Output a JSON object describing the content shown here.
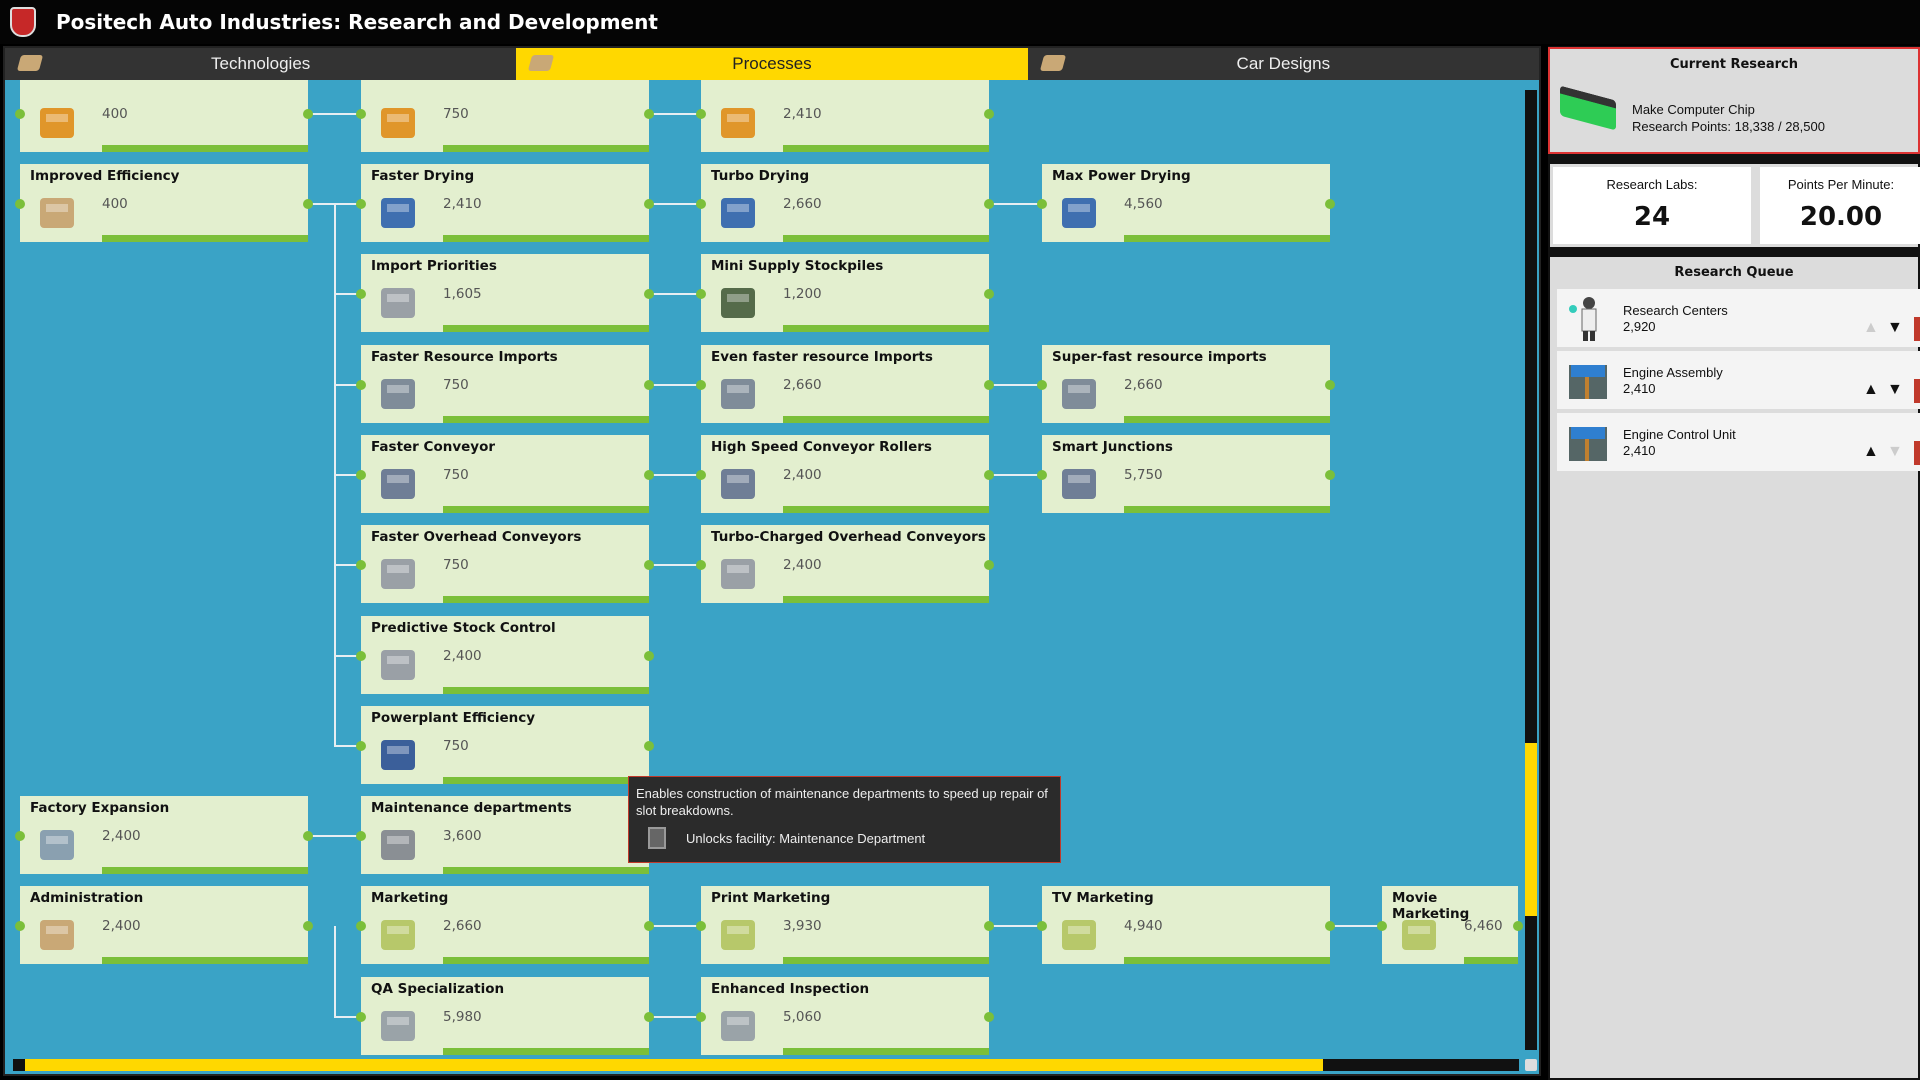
{
  "app_title": "Positech Auto Industries: Research and Development",
  "tabs": [
    {
      "label": "Technologies",
      "active": false
    },
    {
      "label": "Processes",
      "active": true
    },
    {
      "label": "Car Designs",
      "active": false
    }
  ],
  "cards": [
    {
      "name": "",
      "points": "400",
      "icon": "robot-arm"
    },
    {
      "name": "",
      "points": "750",
      "icon": "robot-arm"
    },
    {
      "name": "",
      "points": "2,410",
      "icon": "robot-arm"
    },
    {
      "name": "Improved Efficiency",
      "points": "400",
      "icon": "desk"
    },
    {
      "name": "Faster Drying",
      "points": "2,410",
      "icon": "dryer-fan"
    },
    {
      "name": "Turbo Drying",
      "points": "2,660",
      "icon": "dryer-fan"
    },
    {
      "name": "Max Power Drying",
      "points": "4,560",
      "icon": "dryer-fan"
    },
    {
      "name": "Import Priorities",
      "points": "1,605",
      "icon": "crane"
    },
    {
      "name": "Mini Supply Stockpiles",
      "points": "1,200",
      "icon": "pallet"
    },
    {
      "name": "Faster Resource Imports",
      "points": "750",
      "icon": "import-bay"
    },
    {
      "name": "Even faster resource Imports",
      "points": "2,660",
      "icon": "import-bay"
    },
    {
      "name": "Super-fast resource imports",
      "points": "2,660",
      "icon": "import-bay"
    },
    {
      "name": "Faster Conveyor",
      "points": "750",
      "icon": "conveyor"
    },
    {
      "name": "High Speed Conveyor Rollers",
      "points": "2,400",
      "icon": "conveyor"
    },
    {
      "name": "Smart Junctions",
      "points": "5,750",
      "icon": "conveyor"
    },
    {
      "name": "Faster Overhead Conveyors",
      "points": "750",
      "icon": "crane"
    },
    {
      "name": "Turbo-Charged Overhead Conveyors",
      "points": "2,400",
      "icon": "crane"
    },
    {
      "name": "Predictive Stock Control",
      "points": "2,400",
      "icon": "crane"
    },
    {
      "name": "Powerplant Efficiency",
      "points": "750",
      "icon": "powerplant"
    },
    {
      "name": "Factory Expansion",
      "points": "2,400",
      "icon": "floor-tile"
    },
    {
      "name": "Maintenance departments",
      "points": "3,600",
      "icon": "maintenance"
    },
    {
      "name": "Administration",
      "points": "2,400",
      "icon": "desk"
    },
    {
      "name": "Marketing",
      "points": "2,660",
      "icon": "marketing-desk"
    },
    {
      "name": "Print Marketing",
      "points": "3,930",
      "icon": "marketing-desk"
    },
    {
      "name": "TV Marketing",
      "points": "4,940",
      "icon": "marketing-desk"
    },
    {
      "name": "Movie Marketing",
      "points": "6,460",
      "icon": "marketing-desk"
    },
    {
      "name": "QA Specialization",
      "points": "5,980",
      "icon": "inspection"
    },
    {
      "name": "Enhanced Inspection",
      "points": "5,060",
      "icon": "inspection"
    }
  ],
  "tooltip": {
    "text": "Enables construction of maintenance departments to speed up repair of slot breakdowns.",
    "unlock": "Unlocks facility: Maintenance Department"
  },
  "current_research": {
    "title": "Current Research",
    "name": "Make Computer Chip",
    "points": "Research Points: 18,338 / 28,500",
    "progress": 0.643
  },
  "stats": {
    "labs_label": "Research Labs:",
    "labs": "24",
    "ppm_label": "Points Per Minute:",
    "ppm": "20.00"
  },
  "queue": {
    "title": "Research Queue",
    "items": [
      {
        "name": "Research Centers",
        "points": "2,920",
        "icon": "scientist",
        "up_enabled": false,
        "down_enabled": true
      },
      {
        "name": "Engine Assembly",
        "points": "2,410",
        "icon": "engine",
        "up_enabled": true,
        "down_enabled": true
      },
      {
        "name": "Engine Control Unit",
        "points": "2,410",
        "icon": "engine",
        "up_enabled": true,
        "down_enabled": false
      }
    ]
  },
  "scroll": {
    "vertical_thumb_start": 0.68,
    "vertical_thumb_end": 0.86,
    "horizontal_thumb_end": 0.87
  },
  "colors": {
    "accent": "#ffd800",
    "background": "#3aa3c6",
    "card": "#e3efcf",
    "progress": "#7bbf3a"
  }
}
